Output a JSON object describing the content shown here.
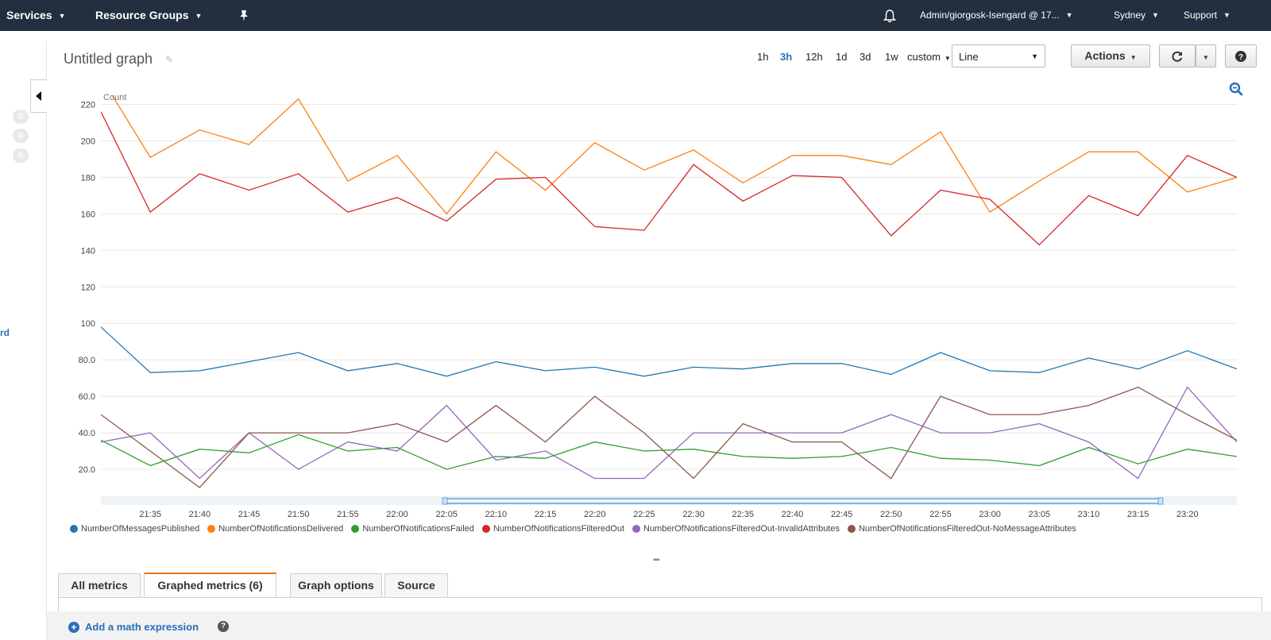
{
  "nav": {
    "services": "Services",
    "resource_groups": "Resource Groups",
    "account": "Admin/giorgosk-Isengard @ 17...",
    "region": "Sydney",
    "support": "Support"
  },
  "sidebar": {
    "badges": [
      "0",
      "0",
      "0"
    ],
    "edge_text": "rd"
  },
  "graph": {
    "title": "Untitled graph",
    "ranges": [
      "1h",
      "3h",
      "12h",
      "1d",
      "3d",
      "1w",
      "custom"
    ],
    "active_range": "3h",
    "view_type": "Line",
    "actions_label": "Actions"
  },
  "colors": {
    "nav_bg": "#232f3e",
    "link": "#2a6ebb",
    "tab_accent": "#e47911"
  },
  "chart_data": {
    "type": "line",
    "ylabel": "Count",
    "yticks": [
      "20.0",
      "40.0",
      "60.0",
      "80.0",
      "100",
      "120",
      "140",
      "160",
      "180",
      "200",
      "220"
    ],
    "ylim": [
      10,
      225
    ],
    "xticks": [
      "21:35",
      "21:40",
      "21:45",
      "21:50",
      "21:55",
      "22:00",
      "22:05",
      "22:10",
      "22:15",
      "22:20",
      "22:25",
      "22:30",
      "22:35",
      "22:40",
      "22:45",
      "22:50",
      "22:55",
      "23:00",
      "23:05",
      "23:10",
      "23:15",
      "23:20"
    ],
    "x": [
      "21:30",
      "21:35",
      "21:40",
      "21:45",
      "21:50",
      "21:55",
      "22:00",
      "22:05",
      "22:10",
      "22:15",
      "22:20",
      "22:25",
      "22:30",
      "22:35",
      "22:40",
      "22:45",
      "22:50",
      "22:55",
      "23:00",
      "23:05",
      "23:10",
      "23:15",
      "23:20",
      "23:25"
    ],
    "grid": true,
    "legend_position": "bottom",
    "series": [
      {
        "name": "NumberOfMessagesPublished",
        "color": "#1f77b4",
        "values": [
          98,
          73,
          74,
          79,
          84,
          74,
          78,
          71,
          79,
          74,
          76,
          71,
          76,
          75,
          78,
          78,
          72,
          84,
          74,
          73,
          81,
          75,
          85,
          75
        ]
      },
      {
        "name": "NumberOfNotificationsDelivered",
        "color": "#ff7f0e",
        "values": [
          240,
          191,
          206,
          198,
          223,
          178,
          192,
          160,
          194,
          173,
          199,
          184,
          195,
          177,
          192,
          192,
          187,
          205,
          161,
          178,
          194,
          194,
          172,
          180
        ]
      },
      {
        "name": "NumberOfNotificationsFailed",
        "color": "#2ca02c",
        "values": [
          36,
          22,
          31,
          29,
          39,
          30,
          32,
          20,
          27,
          26,
          35,
          30,
          31,
          27,
          26,
          27,
          32,
          26,
          25,
          22,
          32,
          23,
          31,
          27
        ]
      },
      {
        "name": "NumberOfNotificationsFilteredOut",
        "color": "#d62728",
        "values": [
          216,
          161,
          182,
          173,
          182,
          161,
          169,
          156,
          179,
          180,
          153,
          151,
          187,
          167,
          181,
          180,
          148,
          173,
          168,
          143,
          170,
          159,
          192,
          180
        ]
      },
      {
        "name": "NumberOfNotificationsFilteredOut-InvalidAttributes",
        "color": "#9467bd",
        "values": [
          35,
          40,
          15,
          40,
          20,
          35,
          30,
          55,
          25,
          30,
          15,
          15,
          40,
          40,
          40,
          40,
          50,
          40,
          40,
          45,
          35,
          15,
          65,
          35
        ]
      },
      {
        "name": "NumberOfNotificationsFilteredOut-NoMessageAttributes",
        "color": "#8c564b",
        "values": [
          50,
          30,
          10,
          40,
          40,
          40,
          45,
          35,
          55,
          35,
          60,
          40,
          15,
          45,
          35,
          35,
          15,
          60,
          50,
          50,
          55,
          65,
          50,
          36
        ]
      }
    ]
  },
  "tabs": [
    {
      "label": "All metrics"
    },
    {
      "label": "Graphed metrics (6)"
    },
    {
      "label": "Graph options"
    },
    {
      "label": "Source"
    }
  ],
  "footer": {
    "add_math": "Add a math expression"
  }
}
